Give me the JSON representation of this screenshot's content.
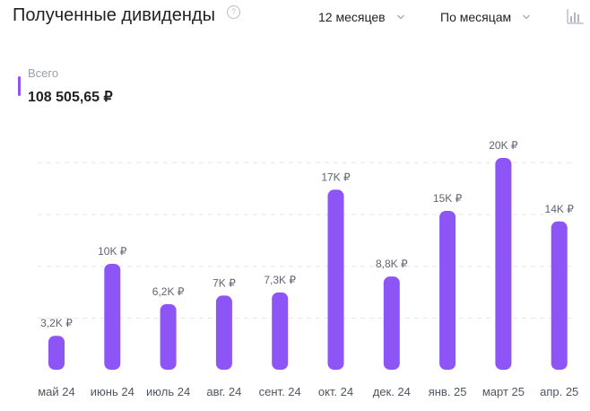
{
  "header": {
    "title": "Полученные дивиденды",
    "help_icon": "question-circle-icon",
    "period_select": "12 месяцев",
    "group_select": "По месяцам",
    "chart_type_icon": "bar-chart-icon"
  },
  "total": {
    "label": "Всего",
    "value": "108 505,65 ₽"
  },
  "colors": {
    "bar": "#8d55f6",
    "accent": "#8d55f6",
    "grid": "#e3e5e9"
  },
  "chart_data": {
    "type": "bar",
    "categories": [
      "май 24",
      "июнь 24",
      "июль 24",
      "авг. 24",
      "сент. 24",
      "окт. 24",
      "дек. 24",
      "янв. 25",
      "март 25",
      "апр. 25"
    ],
    "values": [
      3200,
      10000,
      6200,
      7000,
      7300,
      17000,
      8800,
      15000,
      20000,
      14000
    ],
    "data_labels": [
      "3,2K ₽",
      "10K ₽",
      "6,2K ₽",
      "7K ₽",
      "7,3K ₽",
      "17K ₽",
      "8,8K ₽",
      "15K ₽",
      "20K ₽",
      "14K ₽"
    ],
    "ylim": [
      0,
      20000
    ],
    "grid": true,
    "legend": "none"
  }
}
